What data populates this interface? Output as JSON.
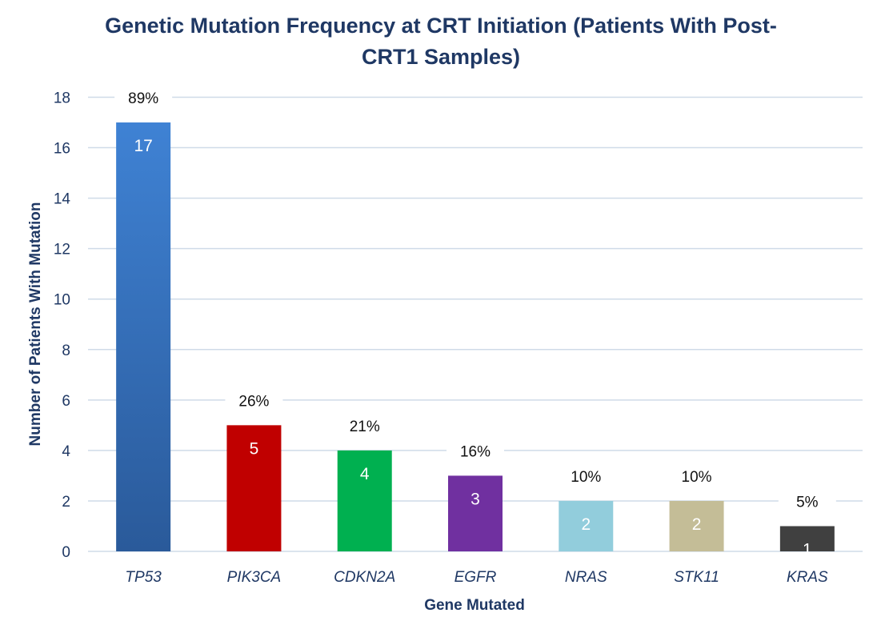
{
  "chart_data": {
    "type": "bar",
    "title_lines": [
      "Genetic Mutation Frequency at CRT Initiation (Patients With Post-",
      "CRT1 Samples)"
    ],
    "xlabel": "Gene Mutated",
    "ylabel": "Number of Patients With Mutation",
    "ylim": [
      0,
      18
    ],
    "yticks": [
      0,
      2,
      4,
      6,
      8,
      10,
      12,
      14,
      16,
      18
    ],
    "grid": true,
    "categories": [
      "TP53",
      "PIK3CA",
      "CDKN2A",
      "EGFR",
      "NRAS",
      "STK11",
      "KRAS"
    ],
    "values": [
      17,
      5,
      4,
      3,
      2,
      2,
      1
    ],
    "percent_labels": [
      "89%",
      "26%",
      "21%",
      "16%",
      "10%",
      "10%",
      "5%"
    ],
    "bar_colors": [
      "#3a78c4",
      "#c00000",
      "#00b050",
      "#7030a0",
      "#92cddc",
      "#c4bd97",
      "#404040"
    ]
  }
}
